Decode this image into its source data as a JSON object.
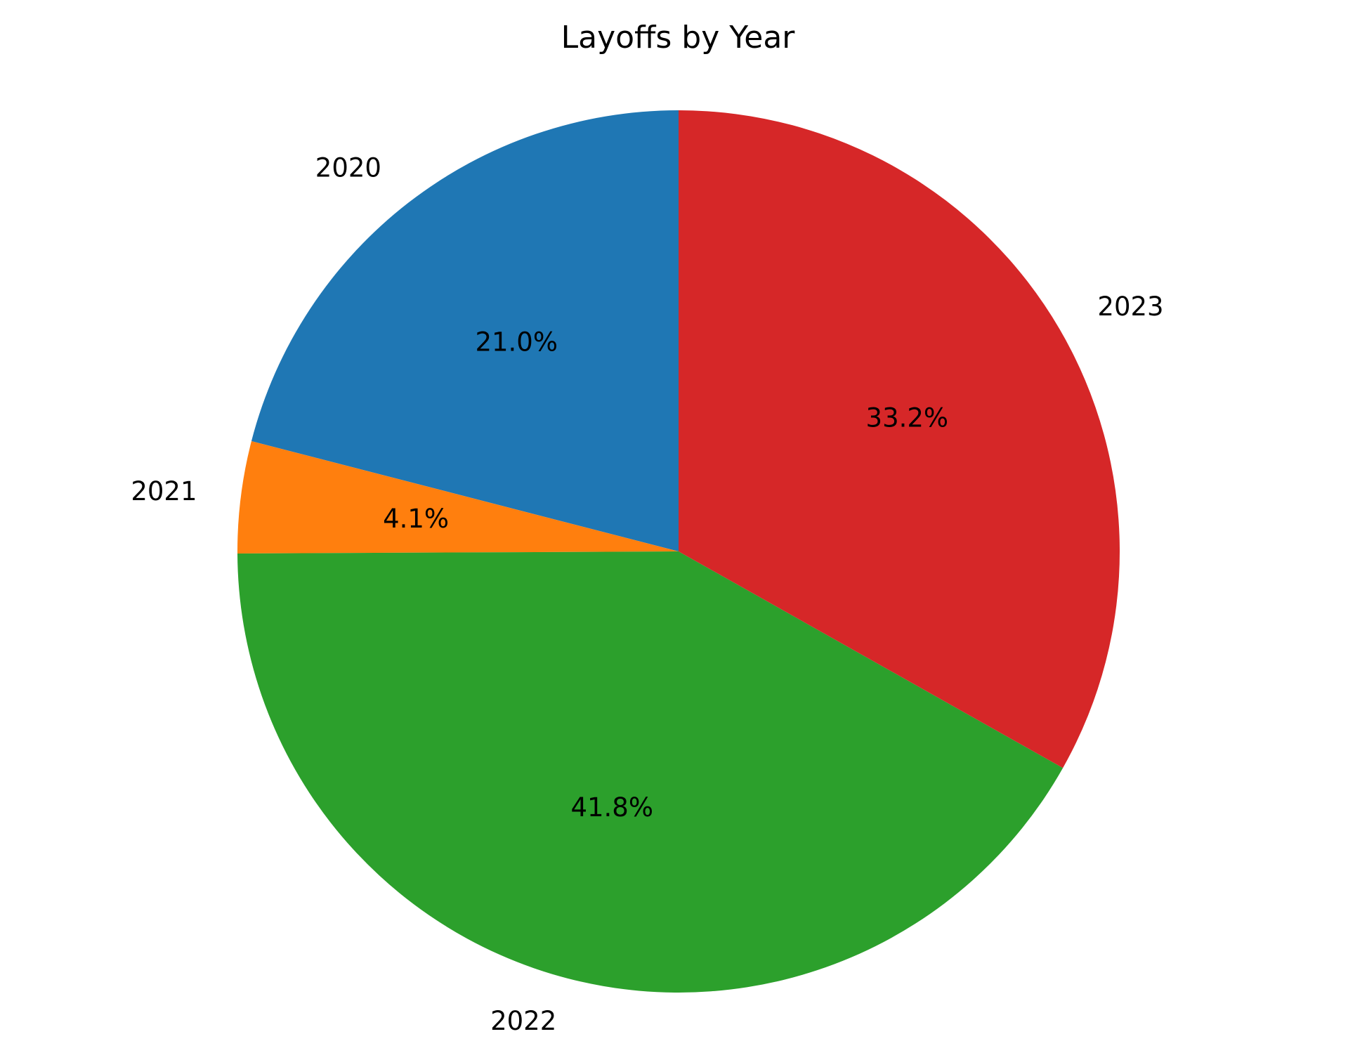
{
  "chart_data": {
    "type": "pie",
    "title": "Layoffs by Year",
    "categories": [
      "2020",
      "2021",
      "2022",
      "2023"
    ],
    "values": [
      21.0,
      4.1,
      41.8,
      33.2
    ],
    "value_labels": [
      "21.0%",
      "4.1%",
      "41.8%",
      "33.2%"
    ],
    "colors": [
      "#1f77b4",
      "#ff7f0e",
      "#2ca02c",
      "#d62728"
    ],
    "start_angle": "top",
    "direction": "counterclockwise",
    "legend": "none"
  }
}
